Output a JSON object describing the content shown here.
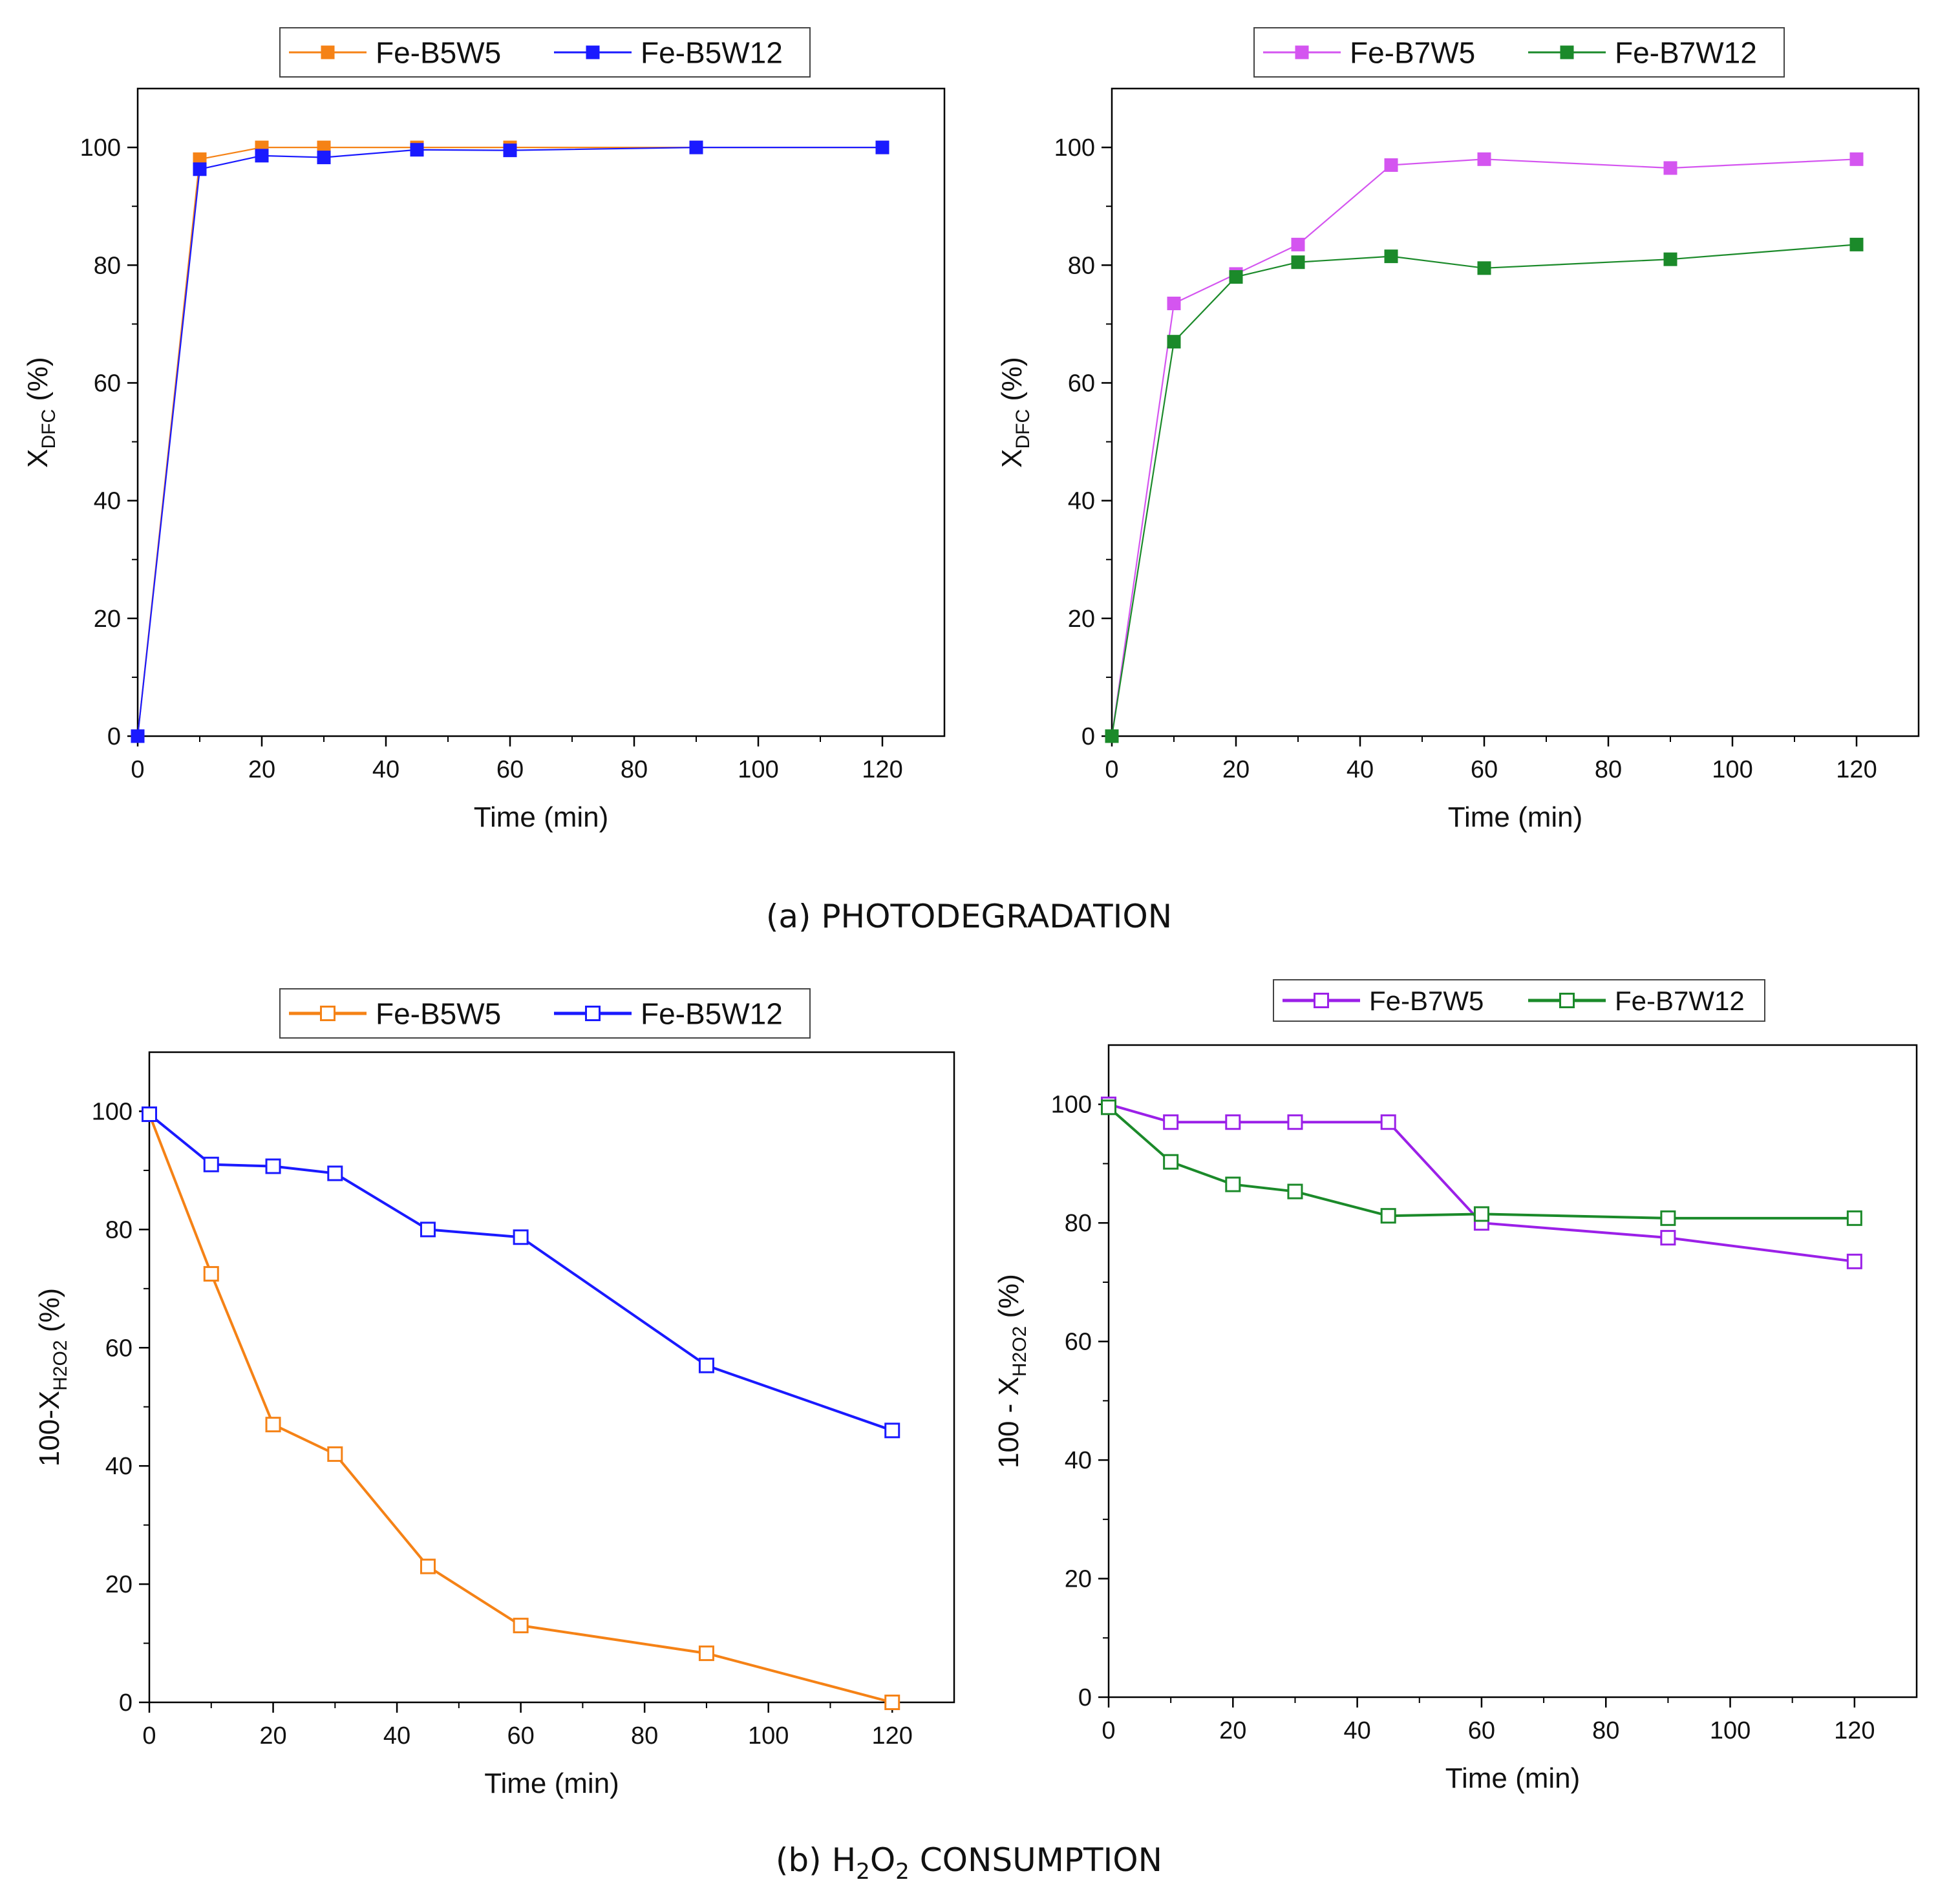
{
  "captions": {
    "a": "(a) PHOTODEGRADATION",
    "b_prefix": "(b) H",
    "b_sub1": "2",
    "b_mid": "O",
    "b_sub2": "2",
    "b_suffix": " CONSUMPTION"
  },
  "chart_data": [
    {
      "id": "top-left",
      "type": "line",
      "marker": "filled-square",
      "xlabel": "Time (min)",
      "ylabel": {
        "main": "X",
        "sub": "DFC",
        "rest": " (%)"
      },
      "xlim": [
        0,
        130
      ],
      "ylim": [
        0,
        110
      ],
      "xticks": [
        0,
        20,
        40,
        60,
        80,
        100,
        120
      ],
      "yticks": [
        0,
        20,
        40,
        60,
        80,
        100
      ],
      "legend_position": "top-center-outside",
      "series": [
        {
          "name": "Fe-B5W5",
          "color": "#f58216",
          "x": [
            0,
            10,
            20,
            30,
            45,
            60,
            90,
            120
          ],
          "values": [
            0,
            98,
            100,
            100,
            100,
            100,
            100,
            100
          ]
        },
        {
          "name": "Fe-B5W12",
          "color": "#1a1aff",
          "x": [
            0,
            10,
            20,
            30,
            45,
            60,
            90,
            120
          ],
          "values": [
            0,
            96.3,
            98.6,
            98.3,
            99.6,
            99.5,
            100,
            100
          ]
        }
      ]
    },
    {
      "id": "top-right",
      "type": "line",
      "marker": "filled-square",
      "xlabel": "Time (min)",
      "ylabel": {
        "main": "X",
        "sub": "DFC",
        "rest": " (%)"
      },
      "xlim": [
        0,
        130
      ],
      "ylim": [
        0,
        110
      ],
      "xticks": [
        0,
        20,
        40,
        60,
        80,
        100,
        120
      ],
      "yticks": [
        0,
        20,
        40,
        60,
        80,
        100
      ],
      "legend_position": "top-center-outside",
      "series": [
        {
          "name": "Fe-B7W5",
          "color": "#d455f0",
          "x": [
            0,
            10,
            20,
            30,
            45,
            60,
            90,
            120
          ],
          "values": [
            0,
            73.5,
            78.5,
            83.5,
            97,
            98,
            96.5,
            98
          ]
        },
        {
          "name": "Fe-B7W12",
          "color": "#1b8a2a",
          "x": [
            0,
            10,
            20,
            30,
            45,
            60,
            90,
            120
          ],
          "values": [
            0,
            67,
            78,
            80.5,
            81.5,
            79.5,
            81,
            83.5
          ]
        }
      ]
    },
    {
      "id": "bottom-left",
      "type": "line",
      "marker": "open-square",
      "xlabel": "Time (min)",
      "ylabel": {
        "main": "100-X",
        "sub": "H2O2",
        "rest": " (%)"
      },
      "xlim": [
        0,
        130
      ],
      "ylim": [
        0,
        110
      ],
      "xticks": [
        0,
        20,
        40,
        60,
        80,
        100,
        120
      ],
      "yticks": [
        0,
        20,
        40,
        60,
        80,
        100
      ],
      "legend_position": "top-center-outside",
      "series": [
        {
          "name": "Fe-B5W5",
          "color": "#f58216",
          "x": [
            0,
            10,
            20,
            30,
            45,
            60,
            90,
            120
          ],
          "values": [
            99.5,
            72.5,
            47,
            42,
            23,
            13,
            8.3,
            0
          ]
        },
        {
          "name": "Fe-B5W12",
          "color": "#1a1aff",
          "x": [
            0,
            10,
            20,
            30,
            45,
            60,
            90,
            120
          ],
          "values": [
            99.5,
            91,
            90.7,
            89.5,
            80,
            78.7,
            57,
            46
          ]
        }
      ]
    },
    {
      "id": "bottom-right",
      "type": "line",
      "marker": "open-square",
      "xlabel": "Time (min)",
      "ylabel": {
        "main": "100 - X",
        "sub": "H2O2",
        "rest": " (%)"
      },
      "xlim": [
        0,
        130
      ],
      "ylim": [
        0,
        110
      ],
      "xticks": [
        0,
        20,
        40,
        60,
        80,
        100,
        120
      ],
      "yticks": [
        0,
        20,
        40,
        60,
        80,
        100
      ],
      "legend_position": "top-center-outside",
      "series": [
        {
          "name": "Fe-B7W5",
          "color": "#9b20e8",
          "x": [
            0,
            10,
            20,
            30,
            45,
            60,
            90,
            120
          ],
          "values": [
            100,
            97,
            97,
            97,
            97,
            80,
            77.5,
            73.5
          ]
        },
        {
          "name": "Fe-B7W12",
          "color": "#1b8a2a",
          "x": [
            0,
            10,
            20,
            30,
            45,
            60,
            90,
            120
          ],
          "values": [
            99.5,
            90.3,
            86.5,
            85.3,
            81.2,
            81.5,
            80.8,
            80.8
          ]
        }
      ]
    }
  ]
}
